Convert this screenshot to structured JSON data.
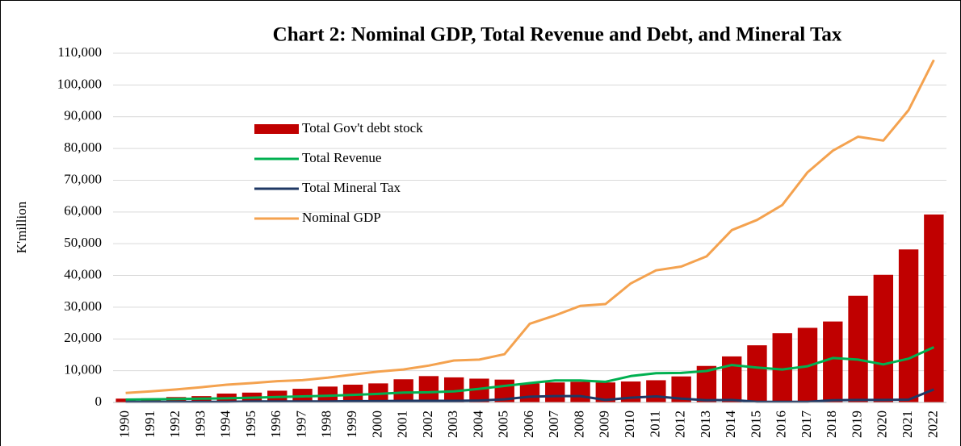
{
  "chart_data": {
    "type": "combo",
    "title": "Chart 2: Nominal GDP, Total Revenue and Debt, and Mineral Tax",
    "y_label": "K'million",
    "categories": [
      "1990",
      "1991",
      "1992",
      "1993",
      "1994",
      "1995",
      "1996",
      "1997",
      "1998",
      "1999",
      "2000",
      "2001",
      "2002",
      "2003",
      "2004",
      "2005",
      "2006",
      "2007",
      "2008",
      "2009",
      "2010",
      "2011",
      "2012",
      "2013",
      "2014",
      "2015",
      "2016",
      "2017",
      "2018",
      "2019",
      "2020",
      "2021",
      "2022"
    ],
    "series": [
      {
        "name": "Total Gov't debt stock",
        "type": "bar",
        "color": "#c00000",
        "values": [
          1200,
          1300,
          1700,
          2000,
          2800,
          3100,
          3700,
          4300,
          5000,
          5600,
          6000,
          7300,
          8300,
          7900,
          7500,
          7200,
          6000,
          6300,
          6500,
          6300,
          6600,
          7000,
          8200,
          11500,
          14500,
          18000,
          21800,
          23500,
          25500,
          33600,
          40200,
          48200,
          59200
        ]
      },
      {
        "name": "Total Revenue",
        "type": "line",
        "color": "#00b050",
        "values": [
          900,
          1000,
          1100,
          1200,
          1300,
          1500,
          1700,
          1900,
          2100,
          2400,
          2700,
          3100,
          3200,
          3500,
          4300,
          5200,
          6100,
          6900,
          6900,
          6500,
          8300,
          9200,
          9300,
          9900,
          11800,
          11000,
          10400,
          11400,
          14000,
          13500,
          12000,
          13800,
          17400
        ]
      },
      {
        "name": "Total Mineral Tax",
        "type": "line",
        "color": "#1f3864",
        "values": [
          200,
          200,
          200,
          200,
          200,
          300,
          300,
          300,
          300,
          400,
          400,
          500,
          500,
          500,
          600,
          1000,
          1800,
          2000,
          2000,
          800,
          1500,
          1900,
          1200,
          700,
          800,
          200,
          200,
          200,
          700,
          800,
          800,
          900,
          4100
        ]
      },
      {
        "name": "Nominal GDP",
        "type": "line",
        "color": "#f4a24f",
        "values": [
          3000,
          3500,
          4100,
          4800,
          5600,
          6100,
          6700,
          7000,
          7800,
          8800,
          9700,
          10400,
          11600,
          13200,
          13500,
          15200,
          24800,
          27400,
          30400,
          31000,
          37500,
          41600,
          42800,
          46000,
          54300,
          57500,
          62200,
          72500,
          79300,
          83700,
          82500,
          92100,
          107900
        ]
      }
    ],
    "ylim": [
      0,
      110000
    ],
    "yticks": [
      0,
      {
        "value": 10000,
        "label": "10,000"
      },
      {
        "value": 20000,
        "label": "20,000"
      },
      {
        "value": 30000,
        "label": "30,000"
      },
      {
        "value": 40000,
        "label": "40,000"
      },
      {
        "value": 50000,
        "label": "50,000"
      },
      {
        "value": 60000,
        "label": "60,000"
      },
      {
        "value": 70000,
        "label": "70,000"
      },
      {
        "value": 80000,
        "label": "80,000"
      },
      {
        "value": 90000,
        "label": "90,000"
      },
      {
        "value": 100000,
        "label": "100,000"
      },
      {
        "value": 110000,
        "label": "110,000"
      }
    ],
    "grid": true
  }
}
